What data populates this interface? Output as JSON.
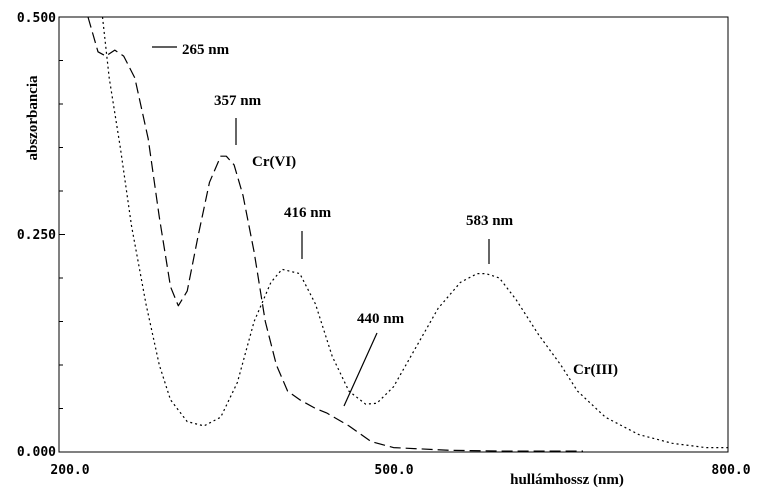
{
  "chart_data": {
    "type": "line",
    "title": "",
    "xlabel": "hullámhossz (nm)",
    "ylabel": "abszorbancia",
    "xlim": [
      200,
      800
    ],
    "ylim": [
      0,
      0.5
    ],
    "x_tick_labels": [
      "200.0",
      "500.0",
      "800.0"
    ],
    "y_tick_labels": [
      "0.000",
      "0.250",
      "0.500"
    ],
    "grid": false,
    "series": [
      {
        "name": "Cr(VI)",
        "line_style": "dashed",
        "points": [
          [
            226,
            0.5
          ],
          [
            235,
            0.46
          ],
          [
            242,
            0.455
          ],
          [
            250,
            0.462
          ],
          [
            258,
            0.455
          ],
          [
            268,
            0.43
          ],
          [
            280,
            0.36
          ],
          [
            290,
            0.27
          ],
          [
            300,
            0.19
          ],
          [
            307,
            0.168
          ],
          [
            315,
            0.185
          ],
          [
            325,
            0.25
          ],
          [
            335,
            0.31
          ],
          [
            345,
            0.34
          ],
          [
            350,
            0.34
          ],
          [
            357,
            0.33
          ],
          [
            365,
            0.295
          ],
          [
            375,
            0.23
          ],
          [
            385,
            0.15
          ],
          [
            395,
            0.1
          ],
          [
            405,
            0.07
          ],
          [
            416,
            0.06
          ],
          [
            430,
            0.05
          ],
          [
            440,
            0.045
          ],
          [
            460,
            0.03
          ],
          [
            480,
            0.012
          ],
          [
            500,
            0.005
          ],
          [
            550,
            0.002
          ],
          [
            600,
            0.001
          ],
          [
            650,
            0.001
          ],
          [
            670,
            0.001
          ]
        ]
      },
      {
        "name": "Cr(III)",
        "line_style": "dotted",
        "points": [
          [
            239,
            0.5
          ],
          [
            245,
            0.43
          ],
          [
            255,
            0.35
          ],
          [
            265,
            0.26
          ],
          [
            278,
            0.17
          ],
          [
            290,
            0.1
          ],
          [
            300,
            0.06
          ],
          [
            315,
            0.035
          ],
          [
            330,
            0.03
          ],
          [
            345,
            0.04
          ],
          [
            360,
            0.08
          ],
          [
            375,
            0.15
          ],
          [
            390,
            0.195
          ],
          [
            400,
            0.21
          ],
          [
            416,
            0.205
          ],
          [
            430,
            0.17
          ],
          [
            445,
            0.11
          ],
          [
            460,
            0.07
          ],
          [
            475,
            0.055
          ],
          [
            485,
            0.056
          ],
          [
            500,
            0.075
          ],
          [
            520,
            0.12
          ],
          [
            540,
            0.165
          ],
          [
            560,
            0.195
          ],
          [
            575,
            0.205
          ],
          [
            583,
            0.205
          ],
          [
            595,
            0.2
          ],
          [
            610,
            0.175
          ],
          [
            630,
            0.135
          ],
          [
            650,
            0.1
          ],
          [
            665,
            0.07
          ],
          [
            690,
            0.04
          ],
          [
            720,
            0.02
          ],
          [
            750,
            0.01
          ],
          [
            780,
            0.005
          ],
          [
            800,
            0.005
          ]
        ]
      }
    ],
    "annotations": [
      {
        "text": "265 nm",
        "x": 255,
        "y": 0.463
      },
      {
        "text": "357 nm",
        "x": 349,
        "y": 0.345
      },
      {
        "text": "416 nm",
        "x": 402,
        "y": 0.213
      },
      {
        "text": "583 nm",
        "x": 580,
        "y": 0.21
      },
      {
        "text": "440 nm",
        "x": 432,
        "y": 0.05
      },
      {
        "text": "Cr(VI)",
        "x": 370,
        "y": 0.33
      },
      {
        "text": "Cr(III)",
        "x": 650,
        "y": 0.09
      }
    ]
  }
}
